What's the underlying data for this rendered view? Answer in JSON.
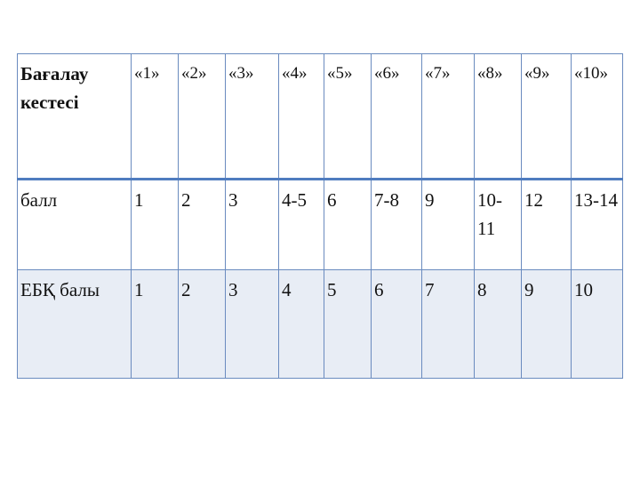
{
  "table": {
    "header": [
      "Бағалау кестесі",
      "«1»",
      "«2»",
      "«3»",
      "«4»",
      "«5»",
      "«6»",
      "«7»",
      "«8»",
      "«9»",
      "«10»"
    ],
    "rows": [
      [
        "балл",
        "1",
        "2",
        "3",
        "4-5",
        "6",
        "7-8",
        "9",
        "10-11",
        "12",
        "13-14"
      ],
      [
        "ЕБҚ балы",
        "1",
        "2",
        "3",
        "4",
        "5",
        "6",
        "7",
        "8",
        "9",
        "10"
      ]
    ],
    "colors": {
      "border": "#6a8bbf",
      "header_rule": "#4f7cbf",
      "band": "#e8edf5"
    }
  }
}
